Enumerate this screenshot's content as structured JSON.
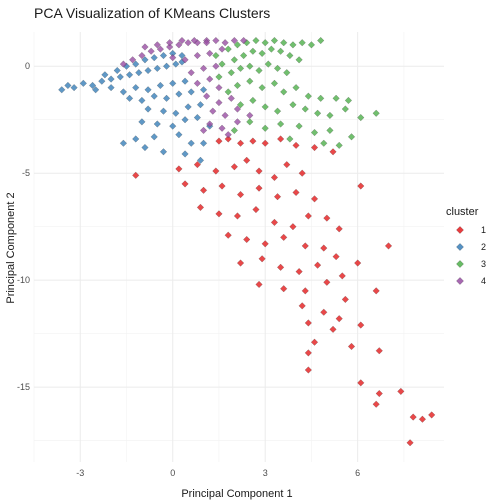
{
  "chart_data": {
    "type": "scatter",
    "title": "PCA Visualization of KMeans Clusters",
    "xlabel": "Principal Component 1",
    "ylabel": "Principal Component 2",
    "xlim": [
      -4.5,
      8.8
    ],
    "ylim": [
      -18.5,
      1.6
    ],
    "x_ticks": [
      -3,
      0,
      3,
      6
    ],
    "y_ticks": [
      0,
      -5,
      -10,
      -15
    ],
    "grid": true,
    "legend": {
      "title": "cluster",
      "position": "right"
    },
    "marker": "diamond",
    "series": [
      {
        "name": "1",
        "color": "#E41A1C",
        "points": [
          [
            1.5,
            -3.5
          ],
          [
            1.8,
            -3.4
          ],
          [
            2.2,
            -3.6
          ],
          [
            2.6,
            -3.5
          ],
          [
            3.0,
            -3.6
          ],
          [
            3.5,
            -3.4
          ],
          [
            4.0,
            -3.7
          ],
          [
            4.6,
            -3.8
          ],
          [
            5.2,
            -4.0
          ],
          [
            -1.2,
            -5.1
          ],
          [
            0.2,
            -4.8
          ],
          [
            0.8,
            -4.6
          ],
          [
            1.4,
            -4.9
          ],
          [
            2.0,
            -4.7
          ],
          [
            2.4,
            -4.4
          ],
          [
            2.8,
            -4.9
          ],
          [
            3.3,
            -5.2
          ],
          [
            3.7,
            -4.6
          ],
          [
            4.2,
            -5.0
          ],
          [
            0.4,
            -5.5
          ],
          [
            1.0,
            -5.8
          ],
          [
            1.6,
            -5.6
          ],
          [
            2.2,
            -6.0
          ],
          [
            2.8,
            -5.7
          ],
          [
            3.4,
            -6.1
          ],
          [
            4.0,
            -5.9
          ],
          [
            4.6,
            -6.2
          ],
          [
            6.1,
            -5.6
          ],
          [
            0.9,
            -6.6
          ],
          [
            1.5,
            -6.9
          ],
          [
            2.1,
            -7.0
          ],
          [
            2.7,
            -6.7
          ],
          [
            3.3,
            -7.3
          ],
          [
            3.9,
            -7.5
          ],
          [
            4.4,
            -7.0
          ],
          [
            5.0,
            -7.1
          ],
          [
            5.4,
            -7.6
          ],
          [
            1.8,
            -7.9
          ],
          [
            2.4,
            -8.1
          ],
          [
            3.0,
            -8.3
          ],
          [
            3.6,
            -8.0
          ],
          [
            4.3,
            -8.4
          ],
          [
            4.9,
            -8.5
          ],
          [
            5.3,
            -8.9
          ],
          [
            7.0,
            -8.4
          ],
          [
            2.2,
            -9.2
          ],
          [
            2.9,
            -9.0
          ],
          [
            3.5,
            -9.4
          ],
          [
            4.1,
            -9.6
          ],
          [
            4.7,
            -9.3
          ],
          [
            5.5,
            -9.8
          ],
          [
            6.0,
            -9.2
          ],
          [
            2.8,
            -10.2
          ],
          [
            3.6,
            -10.4
          ],
          [
            4.3,
            -10.5
          ],
          [
            5.0,
            -10.1
          ],
          [
            5.6,
            -10.9
          ],
          [
            6.6,
            -10.5
          ],
          [
            4.2,
            -11.2
          ],
          [
            4.9,
            -11.5
          ],
          [
            5.4,
            -11.8
          ],
          [
            4.4,
            -12.0
          ],
          [
            5.2,
            -12.3
          ],
          [
            6.1,
            -12.1
          ],
          [
            4.6,
            -12.9
          ],
          [
            5.8,
            -13.1
          ],
          [
            4.4,
            -13.4
          ],
          [
            6.7,
            -13.3
          ],
          [
            4.4,
            -14.2
          ],
          [
            6.1,
            -14.8
          ],
          [
            6.7,
            -15.3
          ],
          [
            7.4,
            -15.2
          ],
          [
            6.6,
            -15.8
          ],
          [
            7.8,
            -16.4
          ],
          [
            8.1,
            -16.5
          ],
          [
            8.4,
            -16.3
          ],
          [
            7.7,
            -17.6
          ]
        ]
      },
      {
        "name": "2",
        "color": "#377EB8",
        "points": [
          [
            -3.2,
            -1.0
          ],
          [
            -3.6,
            -1.1
          ],
          [
            -3.4,
            -0.9
          ],
          [
            -2.9,
            -0.8
          ],
          [
            -2.6,
            -0.9
          ],
          [
            -2.3,
            -0.7
          ],
          [
            -2.0,
            -0.6
          ],
          [
            -1.7,
            -0.5
          ],
          [
            -1.4,
            -0.4
          ],
          [
            -1.1,
            -0.3
          ],
          [
            -0.8,
            -0.2
          ],
          [
            -0.5,
            -0.1
          ],
          [
            -0.2,
            0.0
          ],
          [
            0.1,
            0.1
          ],
          [
            0.3,
            0.2
          ],
          [
            -2.2,
            -0.4
          ],
          [
            -1.8,
            -0.2
          ],
          [
            -1.5,
            0.0
          ],
          [
            -1.2,
            0.1
          ],
          [
            -0.9,
            0.3
          ],
          [
            -0.6,
            0.4
          ],
          [
            -0.3,
            0.5
          ],
          [
            0.0,
            0.6
          ],
          [
            0.3,
            0.5
          ],
          [
            -2.5,
            -1.1
          ],
          [
            -2.0,
            -1.0
          ],
          [
            -1.6,
            -1.2
          ],
          [
            -1.2,
            -1.0
          ],
          [
            -0.8,
            -1.1
          ],
          [
            -0.4,
            -0.9
          ],
          [
            0.0,
            -0.8
          ],
          [
            0.4,
            -0.7
          ],
          [
            -1.4,
            -1.5
          ],
          [
            -1.0,
            -1.6
          ],
          [
            -0.6,
            -1.4
          ],
          [
            -0.2,
            -1.5
          ],
          [
            0.2,
            -1.3
          ],
          [
            0.6,
            -1.2
          ],
          [
            1.0,
            -1.1
          ],
          [
            -0.8,
            -2.0
          ],
          [
            -0.3,
            -2.1
          ],
          [
            0.1,
            -2.2
          ],
          [
            0.5,
            -1.9
          ],
          [
            0.9,
            -1.8
          ],
          [
            -1.0,
            -2.6
          ],
          [
            -0.5,
            -2.7
          ],
          [
            0.0,
            -2.8
          ],
          [
            0.4,
            -2.5
          ],
          [
            0.8,
            -2.4
          ],
          [
            -1.6,
            -3.6
          ],
          [
            -1.2,
            -3.4
          ],
          [
            -0.6,
            -3.3
          ],
          [
            0.2,
            -3.2
          ],
          [
            0.6,
            -3.6
          ],
          [
            -0.9,
            -3.8
          ],
          [
            -0.3,
            -4.0
          ],
          [
            0.4,
            -4.1
          ],
          [
            1.2,
            -2.8
          ],
          [
            1.0,
            -3.6
          ],
          [
            0.9,
            -4.4
          ]
        ]
      },
      {
        "name": "3",
        "color": "#4DAF4A",
        "points": [
          [
            1.4,
            0.5
          ],
          [
            1.8,
            0.8
          ],
          [
            2.1,
            1.0
          ],
          [
            2.4,
            1.1
          ],
          [
            2.7,
            1.2
          ],
          [
            3.0,
            1.1
          ],
          [
            3.3,
            1.2
          ],
          [
            3.6,
            1.1
          ],
          [
            3.9,
            1.0
          ],
          [
            4.2,
            1.1
          ],
          [
            4.5,
            1.0
          ],
          [
            4.8,
            1.2
          ],
          [
            1.6,
            0.1
          ],
          [
            2.0,
            0.3
          ],
          [
            2.3,
            0.5
          ],
          [
            2.6,
            0.7
          ],
          [
            2.9,
            0.6
          ],
          [
            3.2,
            0.8
          ],
          [
            3.5,
            0.7
          ],
          [
            3.8,
            0.5
          ],
          [
            4.1,
            0.3
          ],
          [
            1.5,
            -0.5
          ],
          [
            1.9,
            -0.3
          ],
          [
            2.2,
            -0.1
          ],
          [
            2.5,
            0.0
          ],
          [
            2.8,
            -0.2
          ],
          [
            3.1,
            0.1
          ],
          [
            3.4,
            -0.1
          ],
          [
            3.7,
            -0.3
          ],
          [
            1.8,
            -1.2
          ],
          [
            2.1,
            -0.9
          ],
          [
            2.5,
            -0.7
          ],
          [
            2.9,
            -1.0
          ],
          [
            3.3,
            -0.8
          ],
          [
            3.6,
            -1.2
          ],
          [
            4.0,
            -1.0
          ],
          [
            4.4,
            -1.4
          ],
          [
            4.8,
            -1.5
          ],
          [
            5.3,
            -1.5
          ],
          [
            5.7,
            -1.6
          ],
          [
            2.2,
            -1.8
          ],
          [
            2.6,
            -1.6
          ],
          [
            3.0,
            -1.9
          ],
          [
            3.4,
            -2.1
          ],
          [
            3.9,
            -1.8
          ],
          [
            4.3,
            -2.0
          ],
          [
            4.7,
            -2.2
          ],
          [
            5.1,
            -2.3
          ],
          [
            5.6,
            -2.0
          ],
          [
            6.1,
            -2.4
          ],
          [
            6.6,
            -2.2
          ],
          [
            2.5,
            -2.6
          ],
          [
            3.0,
            -2.9
          ],
          [
            3.5,
            -2.7
          ],
          [
            4.1,
            -2.8
          ],
          [
            4.6,
            -3.1
          ],
          [
            5.1,
            -3.0
          ],
          [
            5.8,
            -3.3
          ],
          [
            2.0,
            -3.0
          ],
          [
            3.8,
            -3.4
          ],
          [
            4.9,
            -3.6
          ],
          [
            5.4,
            -3.7
          ]
        ]
      },
      {
        "name": "4",
        "color": "#984EA3",
        "points": [
          [
            -1.6,
            0.1
          ],
          [
            -1.3,
            0.3
          ],
          [
            -1.0,
            0.5
          ],
          [
            -0.7,
            0.7
          ],
          [
            -0.4,
            0.8
          ],
          [
            -0.1,
            0.9
          ],
          [
            0.2,
            1.0
          ],
          [
            0.5,
            1.1
          ],
          [
            0.8,
            1.1
          ],
          [
            1.1,
            1.2
          ],
          [
            1.4,
            1.2
          ],
          [
            1.7,
            1.1
          ],
          [
            2.0,
            1.2
          ],
          [
            2.3,
            1.2
          ],
          [
            -0.9,
            0.9
          ],
          [
            -0.5,
            1.0
          ],
          [
            -0.1,
            1.1
          ],
          [
            0.3,
            1.2
          ],
          [
            0.7,
            1.2
          ],
          [
            1.1,
            1.1
          ],
          [
            0.0,
            0.4
          ],
          [
            0.4,
            0.3
          ],
          [
            0.8,
            0.5
          ],
          [
            1.2,
            0.6
          ],
          [
            1.6,
            0.8
          ],
          [
            0.6,
            -0.3
          ],
          [
            1.0,
            -0.1
          ],
          [
            1.4,
            0.0
          ],
          [
            0.8,
            -0.8
          ],
          [
            1.2,
            -0.6
          ],
          [
            1.5,
            -1.0
          ],
          [
            1.1,
            -1.4
          ],
          [
            1.5,
            -1.7
          ],
          [
            1.9,
            -1.5
          ],
          [
            1.3,
            -2.1
          ],
          [
            1.7,
            -2.3
          ],
          [
            2.1,
            -2.0
          ],
          [
            1.2,
            -2.7
          ],
          [
            1.6,
            -2.9
          ],
          [
            2.1,
            -2.6
          ],
          [
            2.5,
            -2.3
          ],
          [
            1.0,
            -3.0
          ],
          [
            1.8,
            -3.2
          ]
        ]
      }
    ]
  }
}
